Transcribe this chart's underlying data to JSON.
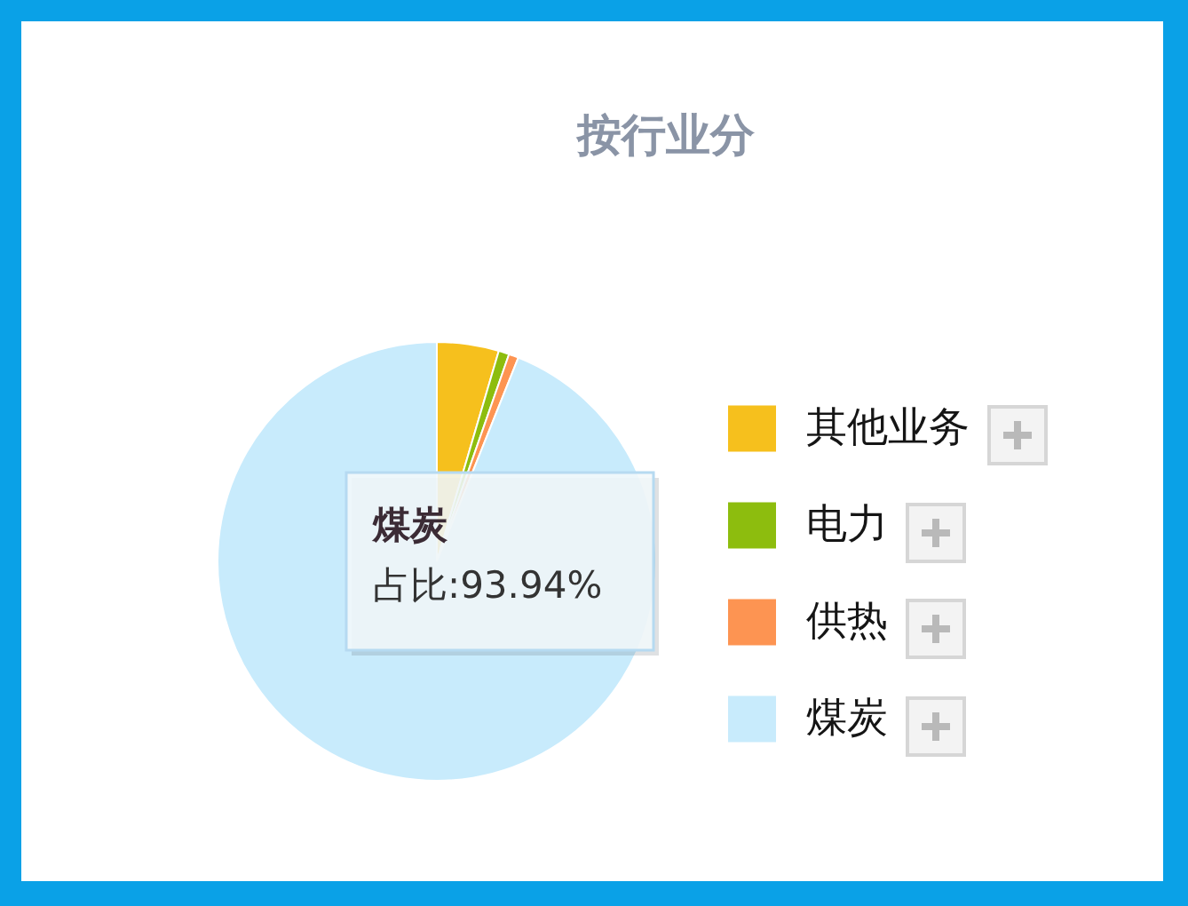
{
  "chart_data": {
    "type": "pie",
    "title": "按行业分",
    "categories": [
      "其他业务",
      "电力",
      "供热",
      "煤炭"
    ],
    "values": [
      4.56,
      0.78,
      0.72,
      93.94
    ],
    "colors": [
      "#f6c01d",
      "#8dbd0e",
      "#fd9452",
      "#c8ebfc"
    ],
    "legend": "right",
    "annotations": [
      "煤炭",
      "占比:93.94%"
    ]
  }
}
